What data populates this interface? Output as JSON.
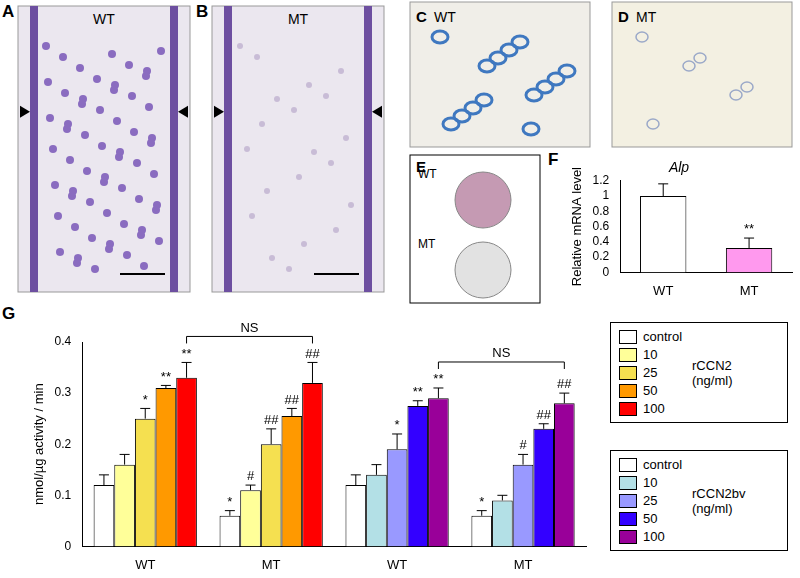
{
  "image_panels": [
    {
      "panel": "A",
      "label": "WT"
    },
    {
      "panel": "B",
      "label": "MT"
    },
    {
      "panel": "C",
      "label": "WT"
    },
    {
      "panel": "D",
      "label": "MT"
    },
    {
      "panel": "E",
      "labels": [
        "WT",
        "MT"
      ]
    }
  ],
  "chart_data": [
    {
      "panel": "F",
      "type": "bar",
      "title": "Alp",
      "ylabel": "Relative mRNA level",
      "categories": [
        "WT",
        "MT"
      ],
      "values": [
        1,
        0.32
      ],
      "errors": [
        0.16,
        0.13
      ],
      "colors": [
        "#ffffff",
        "#ff99ee"
      ],
      "marks": [
        null,
        "**"
      ],
      "ylim": [
        0,
        1.2
      ],
      "yticks": [
        0,
        0.2,
        0.4,
        0.6,
        0.8,
        1,
        1.2
      ],
      "grid": false
    },
    {
      "panel": "G",
      "type": "bar",
      "ylabel": "nmol/µg activity / min",
      "categories": [
        "WT",
        "MT",
        "WT",
        "MT"
      ],
      "legend": "right",
      "grid": false,
      "ylim": [
        0,
        0.4
      ],
      "yticks": [
        0,
        0.1,
        0.2,
        0.3,
        0.4
      ],
      "series": [
        {
          "name": "control",
          "group": "rCCN2 (ng/ml)",
          "color": "#ffffff",
          "values": [
            0.12,
            0.06,
            null,
            null
          ],
          "errors": [
            0.02,
            0.01,
            null,
            null
          ],
          "marks": [
            null,
            "*",
            null,
            null
          ]
        },
        {
          "name": "10",
          "group": "rCCN2 (ng/ml)",
          "color": "#ffff99",
          "values": [
            0.16,
            0.11,
            null,
            null
          ],
          "errors": [
            0.02,
            0.01,
            null,
            null
          ],
          "marks": [
            null,
            "#",
            null,
            null
          ]
        },
        {
          "name": "25",
          "group": "rCCN2 (ng/ml)",
          "color": "#f5e050",
          "values": [
            0.25,
            0.2,
            null,
            null
          ],
          "errors": [
            0.02,
            0.03,
            null,
            null
          ],
          "marks": [
            "*",
            "##",
            null,
            null
          ]
        },
        {
          "name": "50",
          "group": "rCCN2 (ng/ml)",
          "color": "#ff9900",
          "values": [
            0.31,
            0.255,
            null,
            null
          ],
          "errors": [
            0.005,
            0.015,
            null,
            null
          ],
          "marks": [
            "**",
            "##",
            null,
            null
          ]
        },
        {
          "name": "100",
          "group": "rCCN2 (ng/ml)",
          "color": "#ff0000",
          "values": [
            0.33,
            0.32,
            null,
            null
          ],
          "errors": [
            0.03,
            0.04,
            null,
            null
          ],
          "marks": [
            "**",
            "##",
            null,
            null
          ],
          "bracket": "NS"
        },
        {
          "name": "control",
          "group": "rCCN2bv (ng/ml)",
          "color": "#ffffff",
          "values": [
            null,
            null,
            0.12,
            0.06
          ],
          "errors": [
            null,
            null,
            0.02,
            0.01
          ],
          "marks": [
            null,
            null,
            null,
            "*"
          ]
        },
        {
          "name": "10",
          "group": "rCCN2bv (ng/ml)",
          "color": "#b3e0e6",
          "values": [
            null,
            null,
            0.14,
            0.09
          ],
          "errors": [
            null,
            null,
            0.02,
            0.01
          ],
          "marks": [
            null,
            null,
            null,
            null
          ]
        },
        {
          "name": "25",
          "group": "rCCN2bv (ng/ml)",
          "color": "#9999ff",
          "values": [
            null,
            null,
            0.19,
            0.16
          ],
          "errors": [
            null,
            null,
            0.03,
            0.02
          ],
          "marks": [
            null,
            null,
            "*",
            "#"
          ]
        },
        {
          "name": "50",
          "group": "rCCN2bv (ng/ml)",
          "color": "#3300ff",
          "values": [
            null,
            null,
            0.275,
            0.23
          ],
          "errors": [
            null,
            null,
            0.01,
            0.01
          ],
          "marks": [
            null,
            null,
            "**",
            "##"
          ]
        },
        {
          "name": "100",
          "group": "rCCN2bv (ng/ml)",
          "color": "#990099",
          "values": [
            null,
            null,
            0.29,
            0.28
          ],
          "errors": [
            null,
            null,
            0.02,
            0.02
          ],
          "marks": [
            null,
            null,
            "**",
            "##"
          ],
          "bracket": "NS"
        }
      ]
    }
  ]
}
